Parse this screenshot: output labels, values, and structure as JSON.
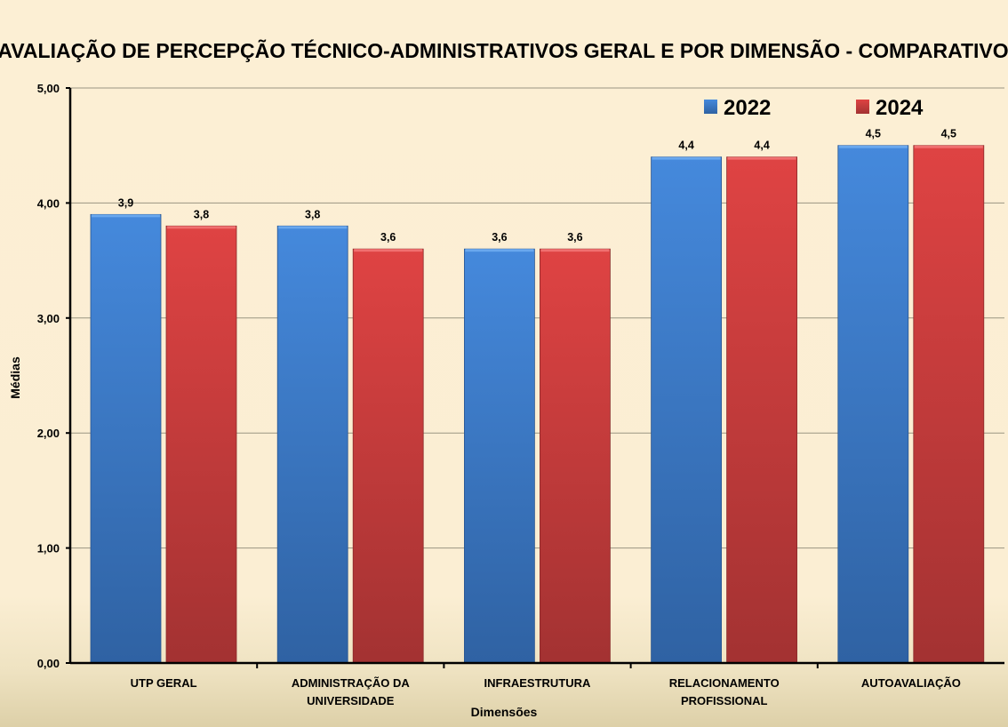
{
  "chart_data": {
    "type": "bar",
    "title": "AVALIAÇÃO DE PERCEPÇÃO TÉCNICO-ADMINISTRATIVOS GERAL E POR DIMENSÃO - COMPARATIVO",
    "xlabel": "Dimensões",
    "ylabel": "Médias",
    "ylim": [
      0,
      5
    ],
    "yticks": [
      "0,00",
      "1,00",
      "2,00",
      "3,00",
      "4,00",
      "5,00"
    ],
    "grid": true,
    "legend": "top-right",
    "categories": [
      [
        "UTP GERAL"
      ],
      [
        "ADMINISTRAÇÃO DA",
        "UNIVERSIDADE"
      ],
      [
        "INFRAESTRUTURA"
      ],
      [
        "RELACIONAMENTO",
        "PROFISSIONAL"
      ],
      [
        "AUTOAVALIAÇÃO"
      ]
    ],
    "series": [
      {
        "name": "2022",
        "color": "#3f82d6",
        "values": [
          3.9,
          3.8,
          3.6,
          4.4,
          4.5
        ],
        "labels": [
          "3,9",
          "3,8",
          "3,6",
          "4,4",
          "4,5"
        ]
      },
      {
        "name": "2024",
        "color": "#d94040",
        "values": [
          3.8,
          3.6,
          3.6,
          4.4,
          4.5
        ],
        "labels": [
          "3,8",
          "3,6",
          "3,6",
          "4,4",
          "4,5"
        ]
      }
    ]
  }
}
